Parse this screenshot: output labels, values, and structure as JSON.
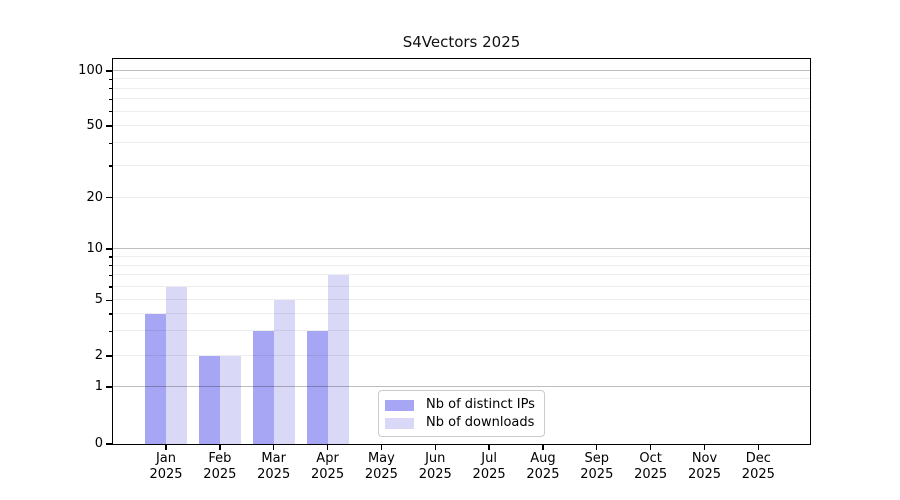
{
  "chart_data": {
    "type": "bar",
    "title": "S4Vectors 2025",
    "months": [
      "Jan",
      "Feb",
      "Mar",
      "Apr",
      "May",
      "Jun",
      "Jul",
      "Aug",
      "Sep",
      "Oct",
      "Nov",
      "Dec"
    ],
    "year": "2025",
    "series": [
      {
        "name": "Nb of distinct IPs",
        "color": "#a6a6f4",
        "values": [
          4,
          2,
          3,
          3,
          0,
          0,
          0,
          0,
          0,
          0,
          0,
          0
        ]
      },
      {
        "name": "Nb of downloads",
        "color": "#d9d9f7",
        "values": [
          6,
          2,
          5,
          7,
          0,
          0,
          0,
          0,
          0,
          0,
          0,
          0
        ]
      }
    ],
    "y_ticks": [
      0,
      1,
      2,
      5,
      10,
      20,
      50,
      100
    ],
    "y_minor_gridlines": [
      2,
      3,
      4,
      5,
      6,
      7,
      8,
      9,
      20,
      30,
      40,
      50,
      60,
      70,
      80,
      90
    ],
    "y_major_gridlines": [
      1,
      10,
      100
    ],
    "ylim": [
      0,
      110
    ],
    "yscale": "log-like",
    "grid": true,
    "legend_position": "bottom-center"
  }
}
